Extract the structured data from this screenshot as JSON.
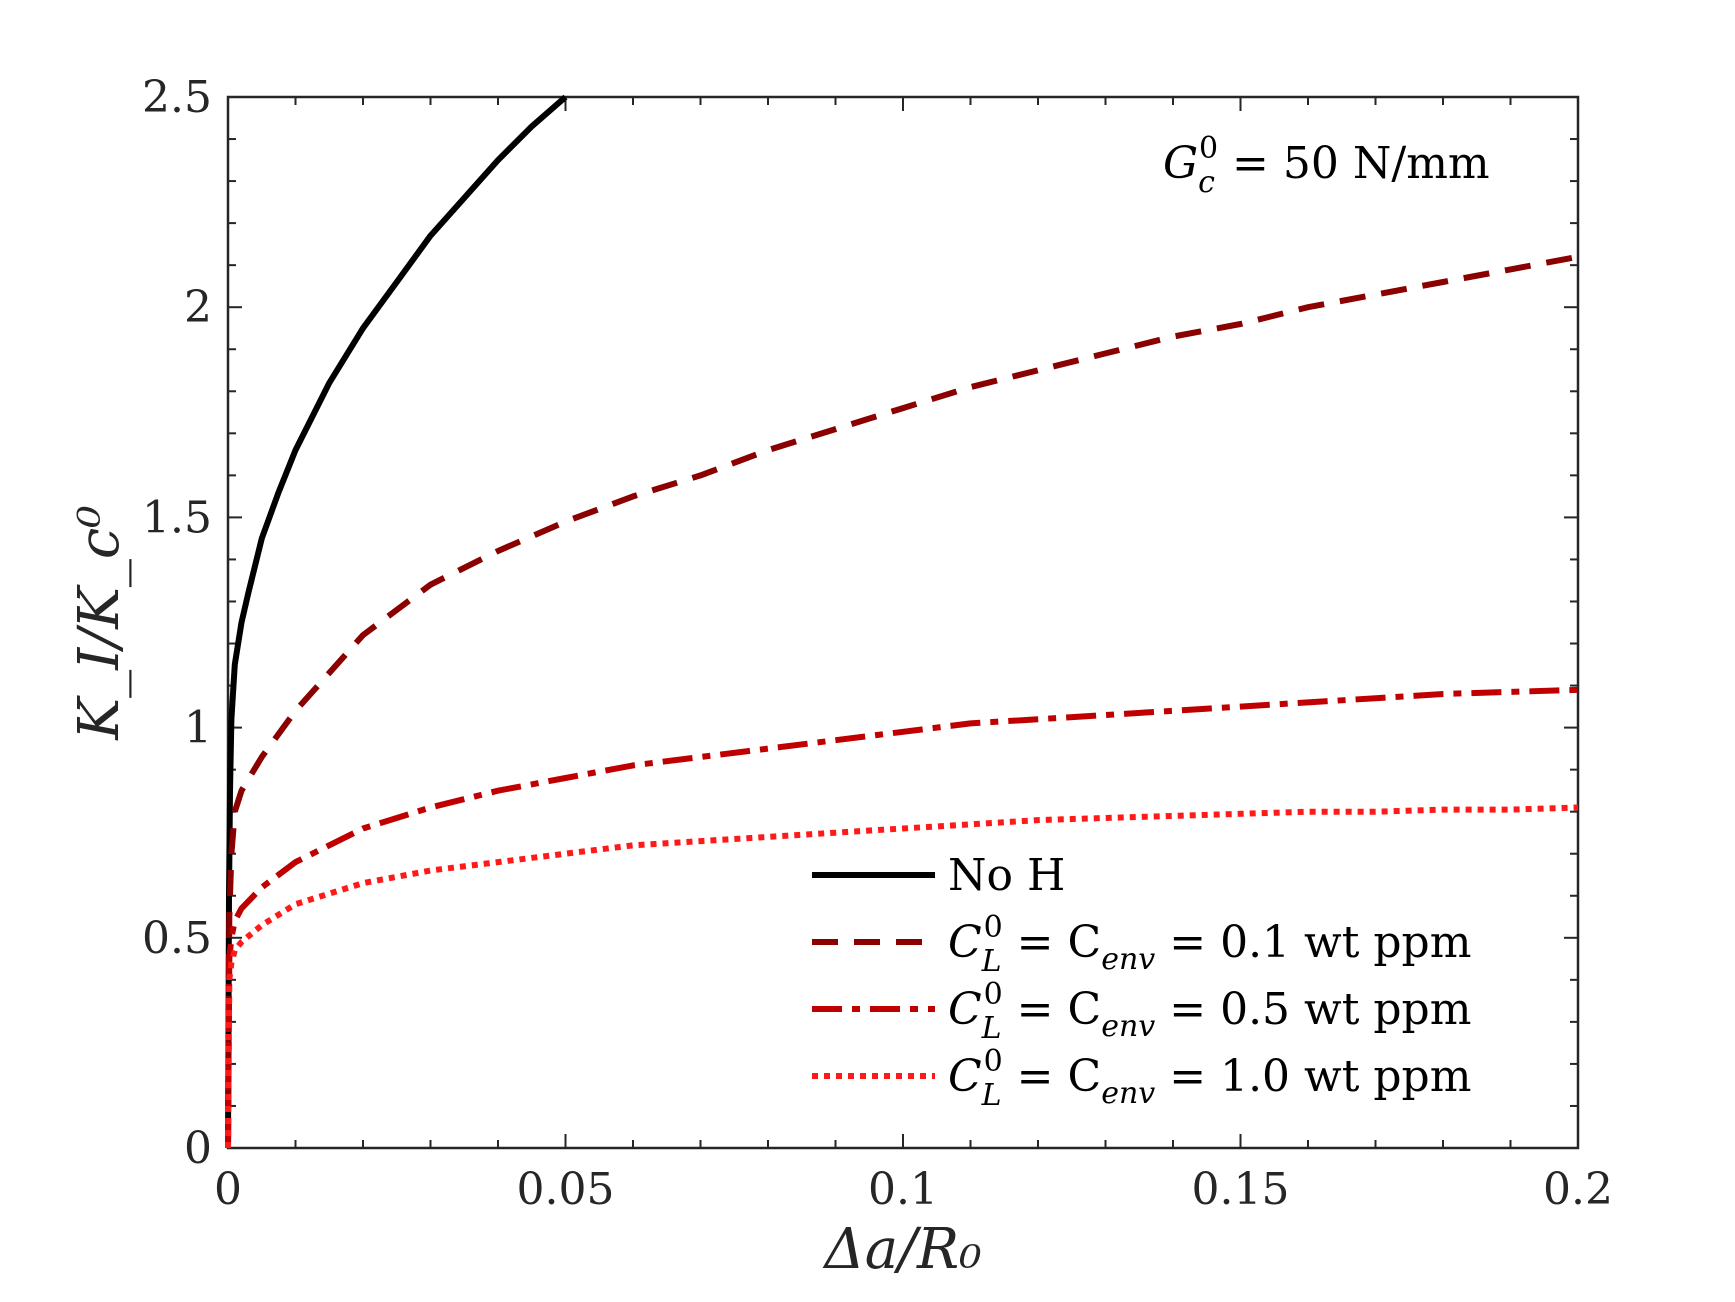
{
  "chart_data": {
    "type": "line",
    "xlabel": "Δa/R₀",
    "ylabel": "K_I/K_c⁰",
    "xlim": [
      0,
      0.2
    ],
    "ylim": [
      0,
      2.5
    ],
    "xticks": [
      0,
      0.05,
      0.1,
      0.15,
      0.2
    ],
    "xtick_labels": [
      "0",
      "0.05",
      "0.1",
      "0.15",
      "0.2"
    ],
    "yticks": [
      0,
      0.5,
      1,
      1.5,
      2,
      2.5
    ],
    "ytick_labels": [
      "0",
      "0.5",
      "1",
      "1.5",
      "2",
      "2.5"
    ],
    "grid": false,
    "legend_position": "bottom-right",
    "annotation": {
      "main": "G",
      "sub": "c",
      "sup": "0",
      "rest": " = 50 N/mm"
    },
    "series": [
      {
        "name": "No H",
        "legend": {
          "main": "No H",
          "sub": "",
          "sup": "",
          "rest": ""
        },
        "color": "#000000",
        "style": "solid",
        "x": [
          0,
          0.00015,
          0.0003,
          0.0005,
          0.001,
          0.002,
          0.003,
          0.005,
          0.0075,
          0.01,
          0.015,
          0.02,
          0.025,
          0.03,
          0.035,
          0.04,
          0.045,
          0.05
        ],
        "y": [
          0,
          0.6,
          0.85,
          1.02,
          1.15,
          1.25,
          1.32,
          1.45,
          1.56,
          1.66,
          1.82,
          1.95,
          2.06,
          2.17,
          2.26,
          2.35,
          2.43,
          2.5
        ]
      },
      {
        "name": "C_L^0 = C_env = 0.1 wt ppm",
        "legend": {
          "main": "C",
          "sub": "L",
          "sup": "0",
          "rest": " = C",
          "sub2": "env",
          "rest2": " = 0.1 wt ppm"
        },
        "color": "#8b0000",
        "style": "dashed",
        "x": [
          0,
          0.0002,
          0.0005,
          0.001,
          0.002,
          0.005,
          0.01,
          0.02,
          0.03,
          0.04,
          0.05,
          0.06,
          0.07,
          0.08,
          0.09,
          0.1,
          0.11,
          0.12,
          0.13,
          0.14,
          0.15,
          0.16,
          0.17,
          0.18,
          0.19,
          0.2
        ],
        "y": [
          0,
          0.55,
          0.7,
          0.8,
          0.85,
          0.93,
          1.04,
          1.22,
          1.34,
          1.42,
          1.49,
          1.55,
          1.6,
          1.66,
          1.71,
          1.76,
          1.81,
          1.85,
          1.89,
          1.93,
          1.96,
          2.0,
          2.03,
          2.06,
          2.09,
          2.12
        ]
      },
      {
        "name": "C_L^0 = C_env = 0.5 wt ppm",
        "legend": {
          "main": "C",
          "sub": "L",
          "sup": "0",
          "rest": " = C",
          "sub2": "env",
          "rest2": " = 0.5 wt ppm"
        },
        "color": "#c00000",
        "style": "dashdot",
        "x": [
          0,
          0.0002,
          0.0005,
          0.001,
          0.002,
          0.005,
          0.01,
          0.02,
          0.03,
          0.04,
          0.05,
          0.06,
          0.07,
          0.08,
          0.09,
          0.1,
          0.11,
          0.12,
          0.13,
          0.14,
          0.15,
          0.16,
          0.17,
          0.18,
          0.19,
          0.2
        ],
        "y": [
          0,
          0.45,
          0.5,
          0.54,
          0.57,
          0.62,
          0.68,
          0.76,
          0.81,
          0.85,
          0.88,
          0.91,
          0.93,
          0.95,
          0.97,
          0.99,
          1.01,
          1.02,
          1.03,
          1.04,
          1.05,
          1.06,
          1.07,
          1.08,
          1.085,
          1.09
        ]
      },
      {
        "name": "C_L^0 = C_env = 1.0 wt ppm",
        "legend": {
          "main": "C",
          "sub": "L",
          "sup": "0",
          "rest": " = C",
          "sub2": "env",
          "rest2": " = 1.0 wt ppm"
        },
        "color": "#ff1a1a",
        "style": "dotted",
        "x": [
          0,
          0.0002,
          0.0005,
          0.001,
          0.002,
          0.005,
          0.01,
          0.02,
          0.03,
          0.04,
          0.05,
          0.06,
          0.07,
          0.08,
          0.09,
          0.1,
          0.11,
          0.12,
          0.13,
          0.14,
          0.15,
          0.16,
          0.17,
          0.18,
          0.19,
          0.2
        ],
        "y": [
          0,
          0.4,
          0.44,
          0.47,
          0.49,
          0.53,
          0.58,
          0.63,
          0.66,
          0.68,
          0.7,
          0.72,
          0.73,
          0.74,
          0.75,
          0.76,
          0.77,
          0.78,
          0.785,
          0.79,
          0.795,
          0.8,
          0.8,
          0.805,
          0.805,
          0.81
        ]
      }
    ]
  }
}
